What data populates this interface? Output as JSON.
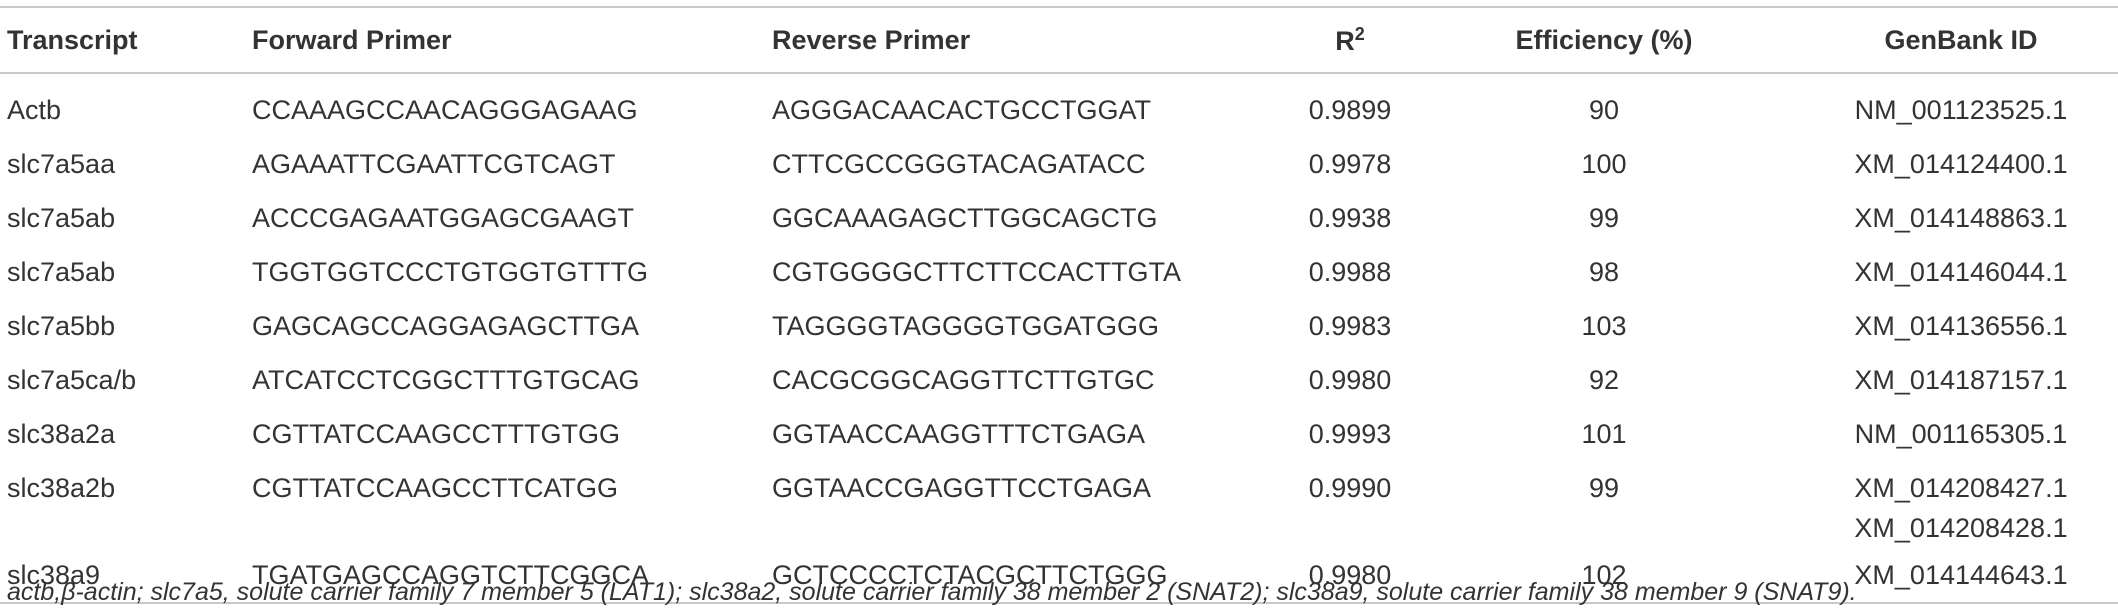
{
  "table": {
    "header": {
      "transcript": "Transcript",
      "forward": "Forward Primer",
      "reverse": "Reverse Primer",
      "r2": {
        "base": "R",
        "sup": "2"
      },
      "efficiency": "Efficiency (%)",
      "genbank": "GenBank ID"
    },
    "rows": [
      {
        "transcript": "Actb",
        "forward": "CCAAAGCCAACAGGGAGAAG",
        "reverse": "AGGGACAACACTGCCTGGAT",
        "r2": "0.9899",
        "efficiency": "90",
        "genbank": [
          "NM_001123525.1"
        ]
      },
      {
        "transcript": "slc7a5aa",
        "forward": "AGAAATTCGAATTCGTCAGT",
        "reverse": "CTTCGCCGGGTACAGATACC",
        "r2": "0.9978",
        "efficiency": "100",
        "genbank": [
          "XM_014124400.1"
        ]
      },
      {
        "transcript": "slc7a5ab",
        "forward": "ACCCGAGAATGGAGCGAAGT",
        "reverse": "GGCAAAGAGCTTGGCAGCTG",
        "r2": "0.9938",
        "efficiency": "99",
        "genbank": [
          "XM_014148863.1"
        ]
      },
      {
        "transcript": "slc7a5ab",
        "forward": "TGGTGGTCCCTGTGGTGTTTG",
        "reverse": "CGTGGGGCTTCTTCCACTTGTA",
        "r2": "0.9988",
        "efficiency": "98",
        "genbank": [
          "XM_014146044.1"
        ]
      },
      {
        "transcript": "slc7a5bb",
        "forward": "GAGCAGCCAGGAGAGCTTGA",
        "reverse": "TAGGGGTAGGGGTGGATGGG",
        "r2": "0.9983",
        "efficiency": "103",
        "genbank": [
          "XM_014136556.1"
        ]
      },
      {
        "transcript": "slc7a5ca/b",
        "forward": "ATCATCCTCGGCTTTGTGCAG",
        "reverse": "CACGCGGCAGGTTCTTGTGC",
        "r2": "0.9980",
        "efficiency": "92",
        "genbank": [
          "XM_014187157.1"
        ]
      },
      {
        "transcript": "slc38a2a",
        "forward": "CGTTATCCAAGCCTTTGTGG",
        "reverse": "GGTAACCAAGGTTTCTGAGA",
        "r2": "0.9993",
        "efficiency": "101",
        "genbank": [
          "NM_001165305.1"
        ]
      },
      {
        "transcript": "slc38a2b",
        "forward": "CGTTATCCAAGCCTTCATGG",
        "reverse": "GGTAACCGAGGTTCCTGAGA",
        "r2": "0.9990",
        "efficiency": "99",
        "genbank": [
          "XM_014208427.1",
          "XM_014208428.1"
        ]
      },
      {
        "transcript": "slc38a9",
        "forward": "TGATGAGCCAGGTCTTCGGCA",
        "reverse": "GCTCCCCTCTACGCTTCTGGG",
        "r2": "0.9980",
        "efficiency": "102",
        "genbank": [
          "XM_014144643.1"
        ]
      }
    ],
    "footnote": "actb,β-actin; slc7a5, solute carrier family 7 member 5 (LAT1); slc38a2, solute carrier family 38 member 2 (SNAT2); slc38a9, solute carrier family 38 member 9 (SNAT9)."
  }
}
